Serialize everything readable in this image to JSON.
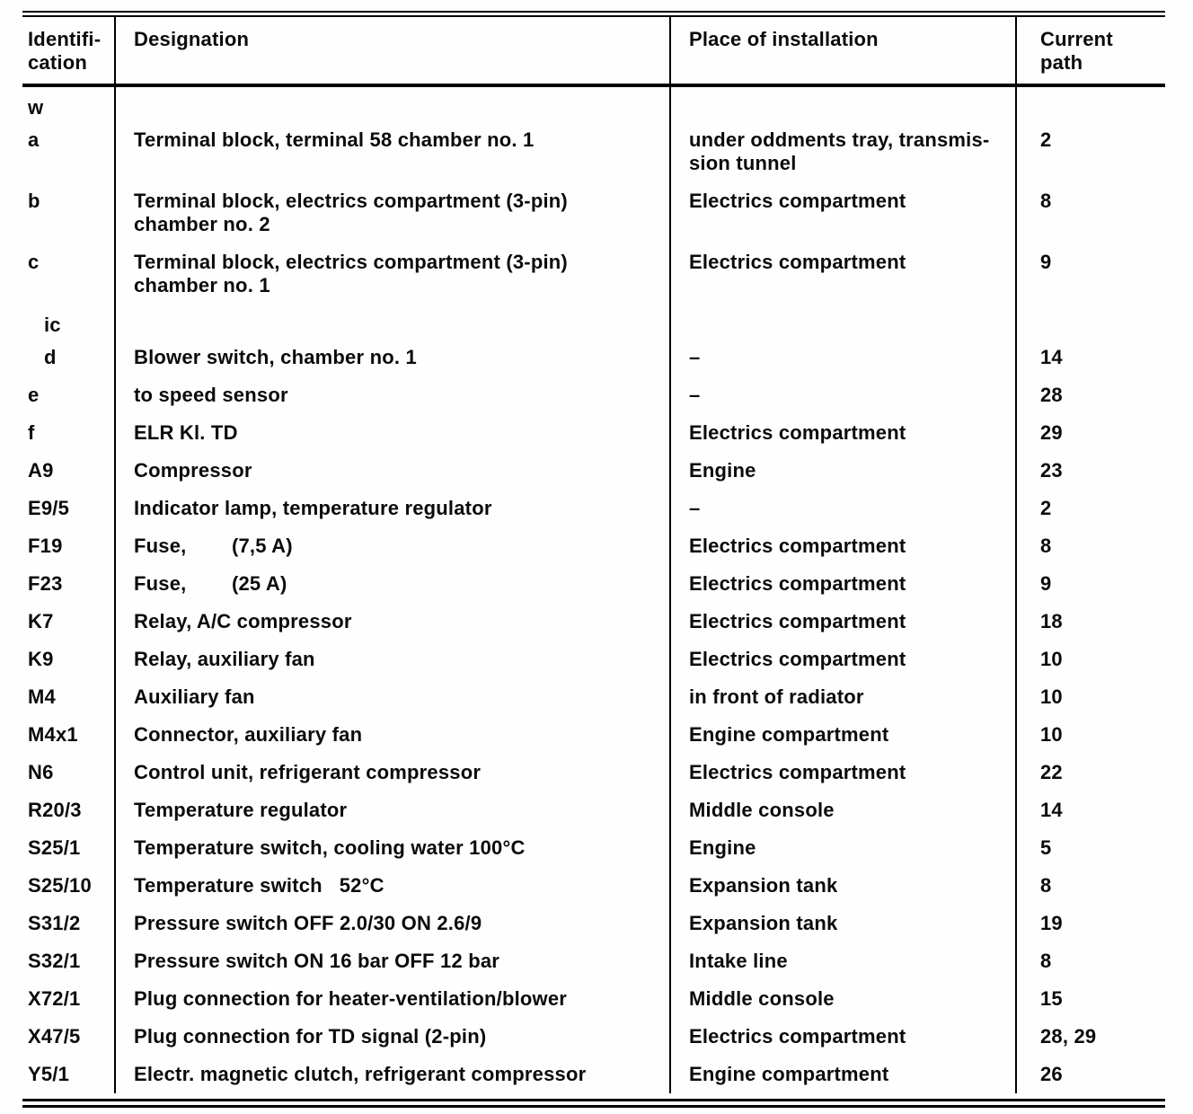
{
  "table": {
    "headers": {
      "identification": "Identifi-\ncation",
      "designation": "Designation",
      "place": "Place of installation",
      "current_path": "Current\npath"
    },
    "rows": [
      {
        "id": "w",
        "designation": "",
        "place": "",
        "path": "",
        "indent": false
      },
      {
        "id": "a",
        "designation": "Terminal block, terminal 58 chamber no. 1",
        "place": "under oddments tray, transmis-\nsion tunnel",
        "path": "2",
        "indent": false
      },
      {
        "id": "b",
        "designation": "Terminal block, electrics compartment (3-pin)\nchamber no. 2",
        "place": "Electrics compartment",
        "path": "8",
        "indent": false
      },
      {
        "id": "c",
        "designation": "Terminal block, electrics compartment (3-pin)\nchamber no. 1",
        "place": "Electrics compartment",
        "path": "9",
        "indent": false
      },
      {
        "id": "ic",
        "designation": "",
        "place": "",
        "path": "",
        "indent": true
      },
      {
        "id": "d",
        "designation": "Blower switch, chamber no. 1",
        "place": "–",
        "path": "14",
        "indent": true
      },
      {
        "id": "e",
        "designation": "to speed sensor",
        "place": "–",
        "path": "28",
        "indent": false
      },
      {
        "id": "f",
        "designation": "ELR Kl. TD",
        "place": "Electrics compartment",
        "path": "29",
        "indent": false
      },
      {
        "id": "A9",
        "designation": "Compressor",
        "place": "Engine",
        "path": "23",
        "indent": false
      },
      {
        "id": "E9/5",
        "designation": "Indicator lamp, temperature regulator",
        "place": "–",
        "path": "2",
        "indent": false
      },
      {
        "id": "F19",
        "designation": "Fuse,        (7,5 A)",
        "place": "Electrics compartment",
        "path": "8",
        "indent": false
      },
      {
        "id": "F23",
        "designation": "Fuse,        (25 A)",
        "place": "Electrics compartment",
        "path": "9",
        "indent": false
      },
      {
        "id": "K7",
        "designation": "Relay, A/C compressor",
        "place": "Electrics compartment",
        "path": "18",
        "indent": false
      },
      {
        "id": "K9",
        "designation": "Relay, auxiliary fan",
        "place": "Electrics compartment",
        "path": "10",
        "indent": false
      },
      {
        "id": "M4",
        "designation": "Auxiliary fan",
        "place": "in front of radiator",
        "path": "10",
        "indent": false
      },
      {
        "id": "M4x1",
        "designation": "Connector, auxiliary fan",
        "place": "Engine compartment",
        "path": "10",
        "indent": false
      },
      {
        "id": "N6",
        "designation": "Control unit, refrigerant compressor",
        "place": "Electrics compartment",
        "path": "22",
        "indent": false
      },
      {
        "id": "R20/3",
        "designation": "Temperature regulator",
        "place": "Middle console",
        "path": "14",
        "indent": false
      },
      {
        "id": "S25/1",
        "designation": "Temperature switch, cooling water 100°C",
        "place": "Engine",
        "path": "5",
        "indent": false
      },
      {
        "id": "S25/10",
        "designation": "Temperature switch   52°C",
        "place": "Expansion tank",
        "path": "8",
        "indent": false
      },
      {
        "id": "S31/2",
        "designation": "Pressure switch OFF 2.0/30 ON 2.6/9",
        "place": "Expansion tank",
        "path": "19",
        "indent": false
      },
      {
        "id": "S32/1",
        "designation": "Pressure switch ON 16 bar OFF 12 bar",
        "place": "Intake line",
        "path": "8",
        "indent": false
      },
      {
        "id": "X72/1",
        "designation": "Plug connection for heater-ventilation/blower",
        "place": "Middle console",
        "path": "15",
        "indent": false
      },
      {
        "id": "X47/5",
        "designation": "Plug connection for TD signal (2-pin)",
        "place": "Electrics compartment",
        "path": "28, 29",
        "indent": false
      },
      {
        "id": "Y5/1",
        "designation": "Electr. magnetic clutch, refrigerant compressor",
        "place": "Engine compartment",
        "path": "26",
        "indent": false
      }
    ]
  }
}
